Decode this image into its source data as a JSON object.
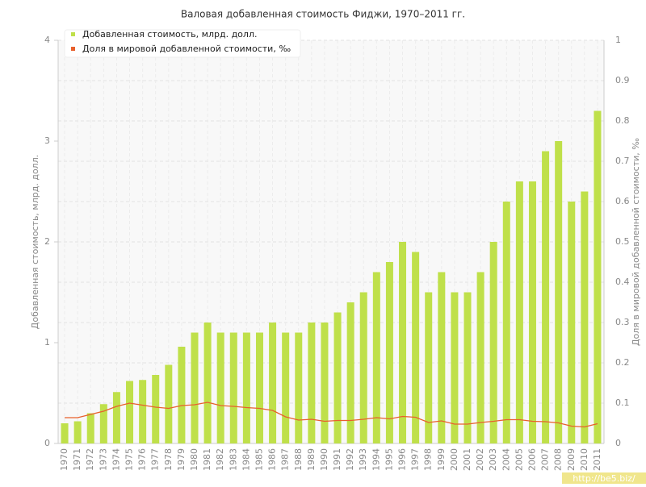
{
  "chart_data": {
    "type": "bar",
    "title": "Валовая добавленная стоимость Фиджи, 1970–2011 гг.",
    "y_label": "Добавленная стоимость, млрд. долл.",
    "y2_label": "Доля в мировой добавленной стоимости, ‰",
    "watermark": "http://be5.biz/",
    "categories": [
      "1970",
      "1971",
      "1972",
      "1973",
      "1974",
      "1975",
      "1976",
      "1977",
      "1978",
      "1979",
      "1980",
      "1981",
      "1982",
      "1983",
      "1984",
      "1985",
      "1986",
      "1987",
      "1988",
      "1989",
      "1990",
      "1991",
      "1992",
      "1993",
      "1994",
      "1995",
      "1996",
      "1997",
      "1998",
      "1999",
      "2000",
      "2001",
      "2002",
      "2003",
      "2004",
      "2005",
      "2006",
      "2007",
      "2008",
      "2009",
      "2010",
      "2011"
    ],
    "series": [
      {
        "name": "Добавленная стоимость, млрд. долл.",
        "type": "bar",
        "color": "#bfe04a",
        "values": [
          0.2,
          0.22,
          0.3,
          0.39,
          0.51,
          0.62,
          0.63,
          0.68,
          0.78,
          0.96,
          1.1,
          1.2,
          1.1,
          1.1,
          1.1,
          1.1,
          1.2,
          1.1,
          1.1,
          1.2,
          1.2,
          1.3,
          1.4,
          1.5,
          1.7,
          1.8,
          2.0,
          1.9,
          1.5,
          1.7,
          1.5,
          1.5,
          1.7,
          2.0,
          2.4,
          2.6,
          2.6,
          2.9,
          3.0,
          2.4,
          2.5,
          3.3
        ]
      },
      {
        "name": "Доля в мировой добавленной стоимости, ‰",
        "type": "line",
        "axis": "y2",
        "color": "#e8602c",
        "values": [
          0.064,
          0.064,
          0.072,
          0.08,
          0.092,
          0.1,
          0.095,
          0.09,
          0.087,
          0.094,
          0.096,
          0.102,
          0.094,
          0.092,
          0.089,
          0.087,
          0.082,
          0.066,
          0.058,
          0.06,
          0.055,
          0.057,
          0.057,
          0.06,
          0.064,
          0.061,
          0.067,
          0.065,
          0.052,
          0.056,
          0.048,
          0.048,
          0.052,
          0.055,
          0.059,
          0.059,
          0.055,
          0.054,
          0.051,
          0.043,
          0.041,
          0.049
        ]
      }
    ],
    "ylim": [
      0,
      4
    ],
    "yticks": [
      0,
      1,
      2,
      3,
      4
    ],
    "y2lim": [
      0,
      1
    ],
    "y2ticks": [
      0,
      0.1,
      0.2,
      0.3,
      0.4,
      0.5,
      0.6,
      0.7,
      0.8,
      0.9,
      1
    ],
    "grid": true
  }
}
